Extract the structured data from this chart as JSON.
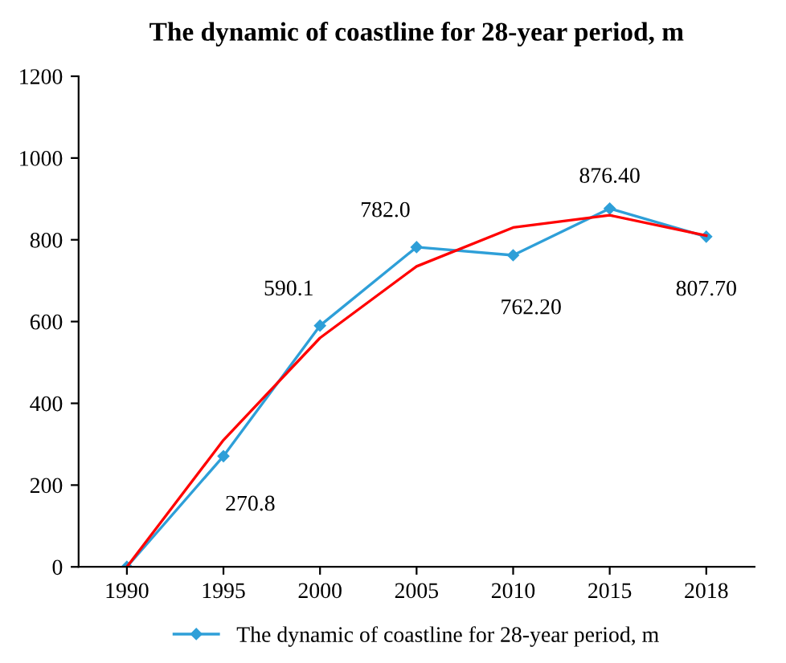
{
  "chart_data": {
    "type": "line",
    "title": "The dynamic of coastline for 28-year period, m",
    "categories": [
      "1990",
      "1995",
      "2000",
      "2005",
      "2010",
      "2015",
      "2018"
    ],
    "series": [
      {
        "name": "The dynamic of coastline for 28-year period, m",
        "color": "#2e9fd8",
        "marker": "diamond",
        "values": [
          0,
          270.8,
          590.1,
          782.0,
          762.2,
          876.4,
          807.7
        ],
        "value_labels": [
          null,
          "270.8",
          "590.1",
          "782.0",
          "762.20",
          "876.40",
          "807.70"
        ]
      },
      {
        "type": "line",
        "color": "#ff0000",
        "marker": "none",
        "values": [
          0,
          310,
          560,
          735,
          830,
          860,
          810
        ]
      }
    ],
    "ylim": [
      0,
      1200
    ],
    "yticks": [
      0,
      200,
      400,
      600,
      800,
      1000,
      1200
    ],
    "grid": false,
    "legend": "bottom"
  }
}
